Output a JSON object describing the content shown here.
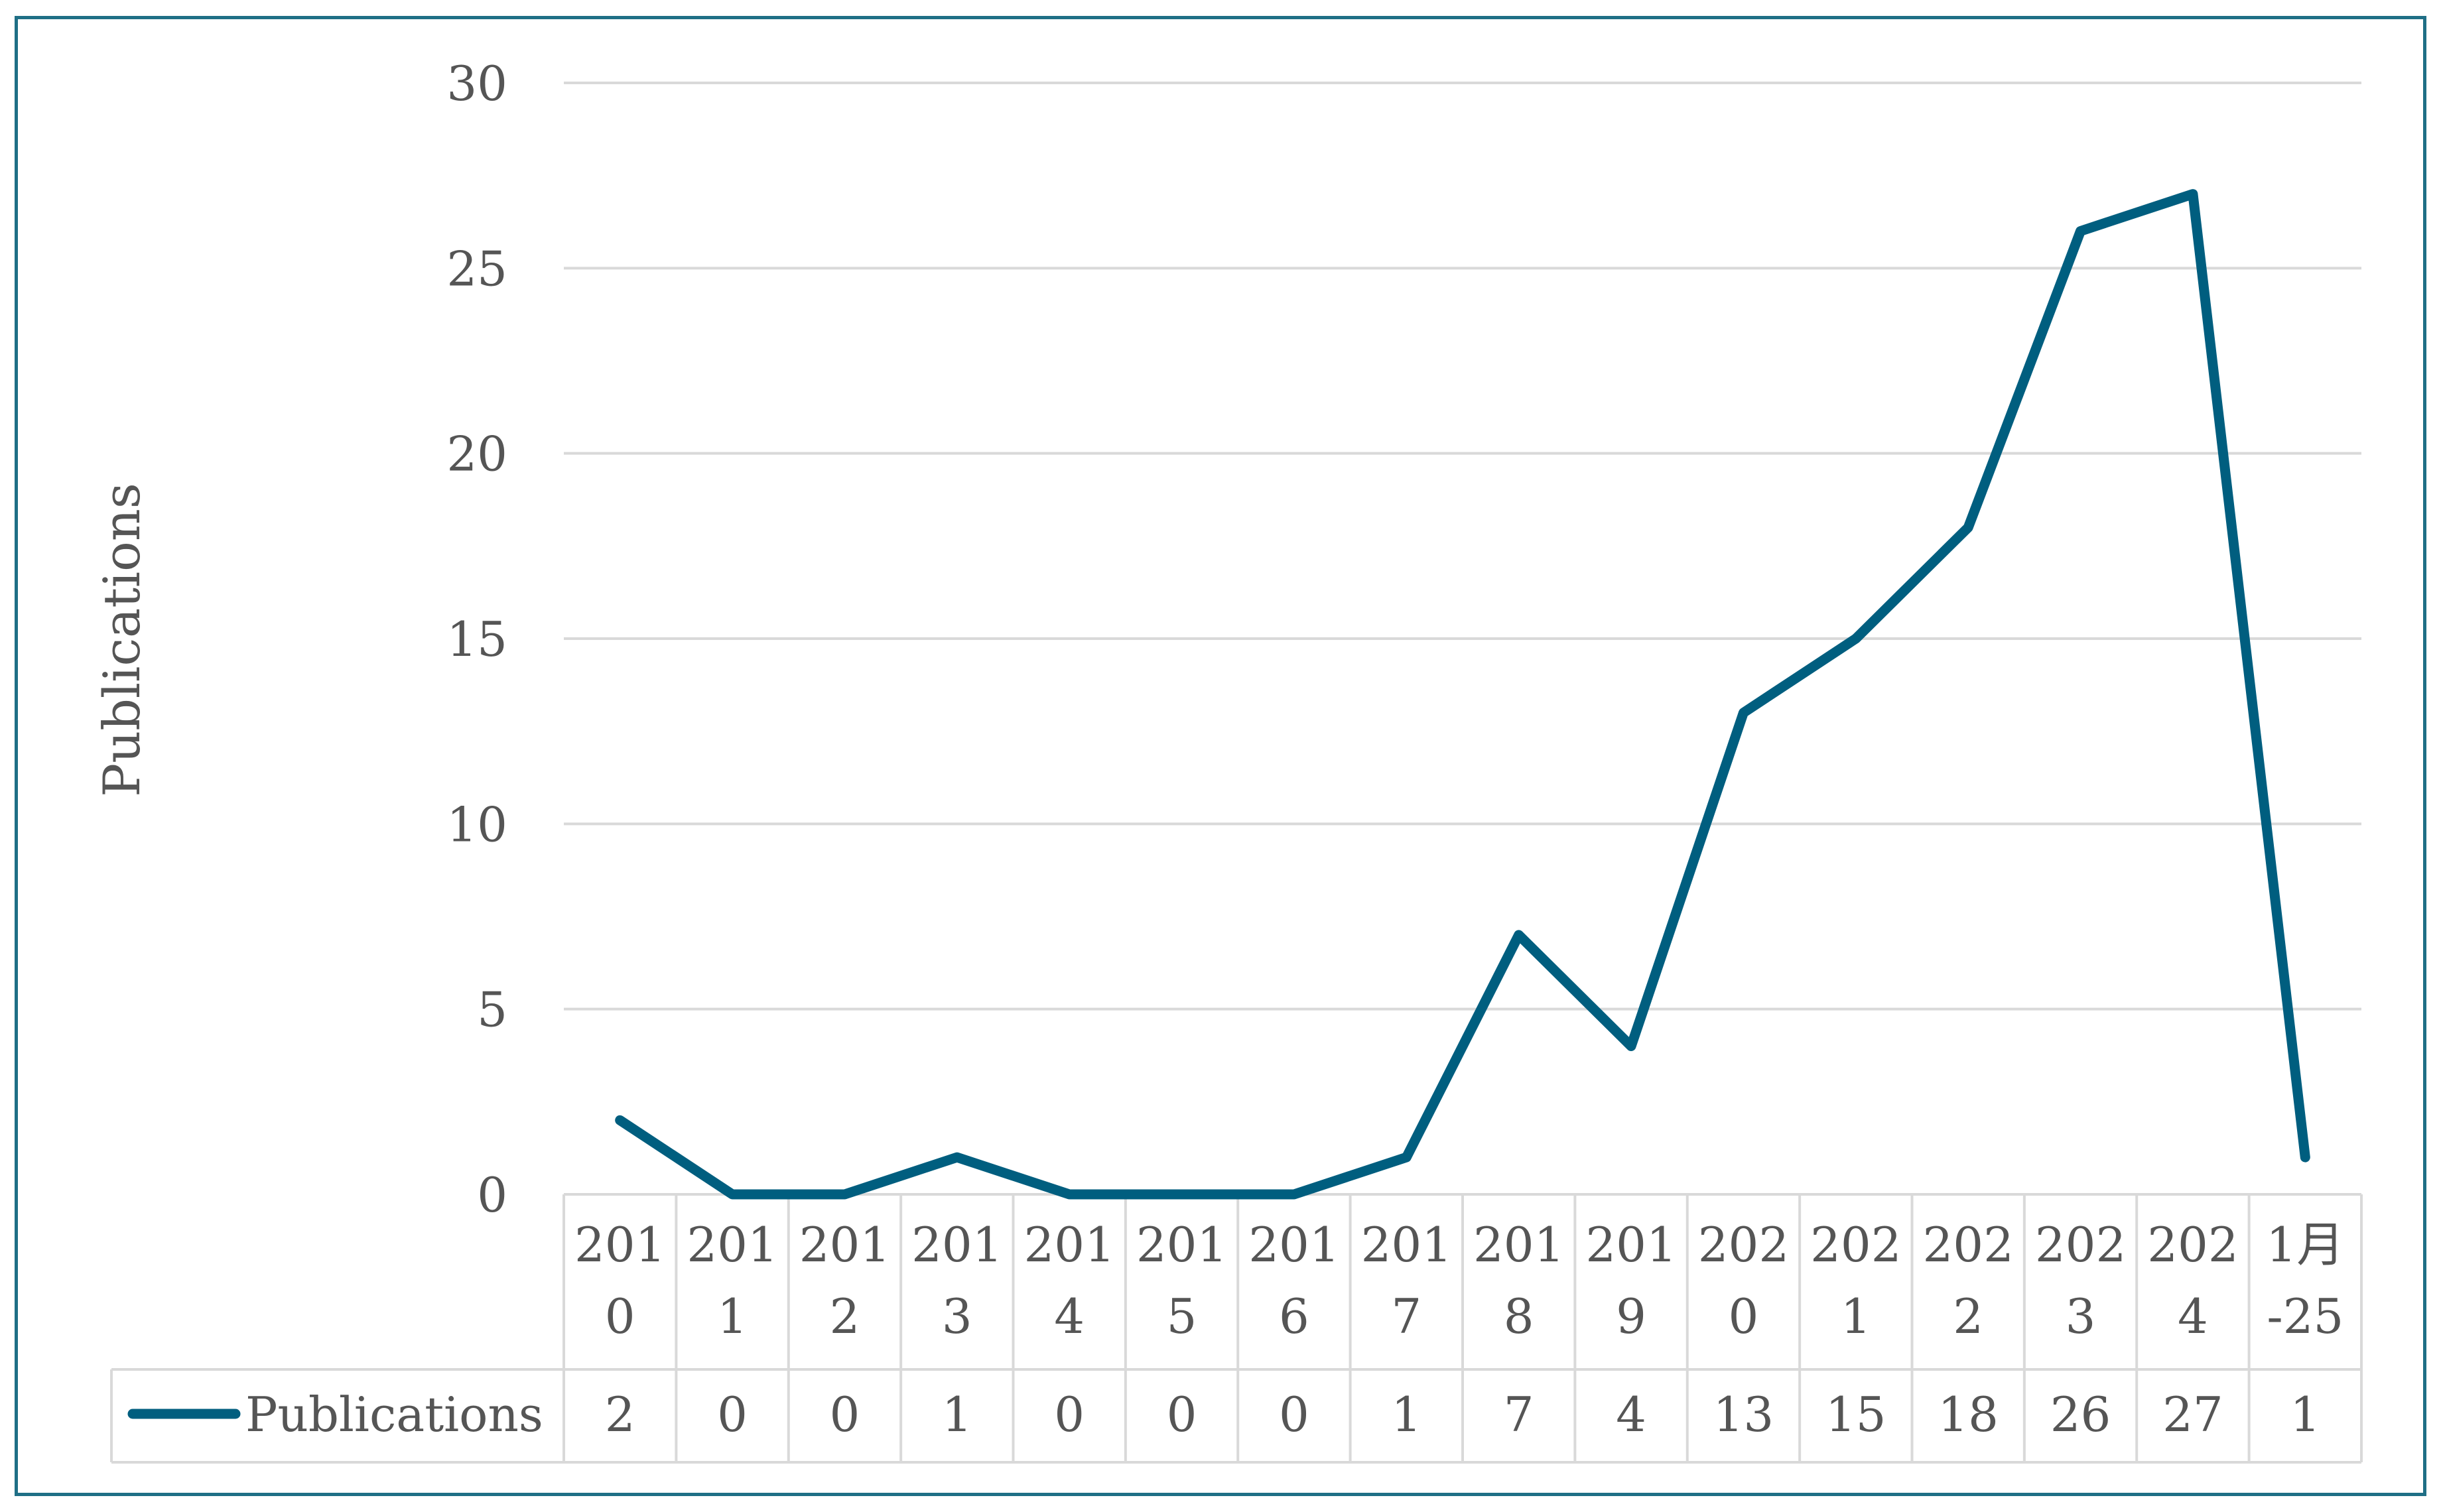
{
  "chart_data": {
    "type": "line",
    "ylabel": "Publications",
    "ylim": [
      0,
      30
    ],
    "yticks": [
      "0",
      "5",
      "10",
      "15",
      "20",
      "25",
      "30"
    ],
    "categories": [
      [
        "201",
        "0"
      ],
      [
        "201",
        "1"
      ],
      [
        "201",
        "2"
      ],
      [
        "201",
        "3"
      ],
      [
        "201",
        "4"
      ],
      [
        "201",
        "5"
      ],
      [
        "201",
        "6"
      ],
      [
        "201",
        "7"
      ],
      [
        "201",
        "8"
      ],
      [
        "201",
        "9"
      ],
      [
        "202",
        "0"
      ],
      [
        "202",
        "1"
      ],
      [
        "202",
        "2"
      ],
      [
        "202",
        "3"
      ],
      [
        "202",
        "4"
      ],
      [
        "1月",
        "-25"
      ]
    ],
    "series": [
      {
        "name": "Publications",
        "values": [
          2,
          0,
          0,
          1,
          0,
          0,
          0,
          1,
          7,
          4,
          13,
          15,
          18,
          26,
          27,
          1
        ]
      }
    ],
    "grid": true,
    "legend": "data-table",
    "colors": {
      "line": "#005e7f",
      "grid": "#d9d9d9",
      "frame": "#1f6f86"
    }
  }
}
